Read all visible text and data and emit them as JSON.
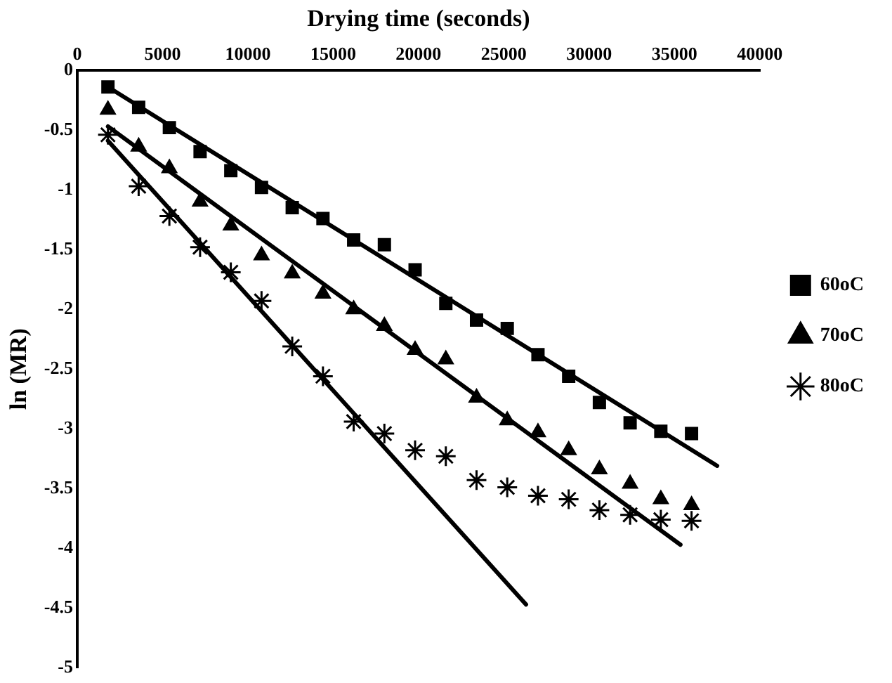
{
  "chart_data": {
    "type": "scatter",
    "xlabel": "Drying time (seconds)",
    "ylabel": "ln (MR)",
    "xlim": [
      0,
      40000
    ],
    "xticks": [
      0,
      5000,
      10000,
      15000,
      20000,
      25000,
      30000,
      35000,
      40000
    ],
    "ylim": [
      -5,
      0
    ],
    "yticks": [
      0,
      -0.5,
      -1,
      -1.5,
      -2,
      -2.5,
      -3,
      -3.5,
      -4,
      -4.5,
      -5
    ],
    "grid": false,
    "legend": "right",
    "x": [
      1800,
      3600,
      5400,
      7200,
      9000,
      10800,
      12600,
      14400,
      16200,
      18000,
      19800,
      21600,
      23400,
      25200,
      27000,
      28800,
      30600,
      32400,
      34200,
      36000
    ],
    "series": [
      {
        "name": "60oC",
        "color": "#000000",
        "marker": "square",
        "values": [
          -0.14,
          -0.31,
          -0.48,
          -0.68,
          -0.84,
          -0.98,
          -1.15,
          -1.24,
          -1.42,
          -1.46,
          -1.67,
          -1.95,
          -2.09,
          -2.16,
          -2.38,
          -2.56,
          -2.78,
          -2.95,
          -3.02,
          -3.04
        ]
      },
      {
        "name": "70oC",
        "color": "#000000",
        "marker": "triangle",
        "values": [
          -0.33,
          -0.64,
          -0.82,
          -1.1,
          -1.3,
          -1.55,
          -1.7,
          -1.87,
          -2.0,
          -2.14,
          -2.34,
          -2.42,
          -2.74,
          -2.93,
          -3.03,
          -3.18,
          -3.34,
          -3.46,
          -3.59,
          -3.64
        ]
      },
      {
        "name": "80oC",
        "color": "#000000",
        "marker": "cross",
        "values": [
          -0.54,
          -0.97,
          -1.22,
          -1.48,
          -1.69,
          -1.93,
          -2.31,
          -2.56,
          -2.94,
          -3.04,
          -3.18,
          -3.23,
          -3.43,
          -3.49,
          -3.56,
          -3.59,
          -3.68,
          -3.72,
          -3.76,
          -3.77
        ]
      },
      {
        "type": "line",
        "color": "#000000",
        "x": [
          1800,
          37500
        ],
        "values": [
          -0.14,
          -3.31
        ]
      },
      {
        "type": "line",
        "color": "#000000",
        "x": [
          1800,
          35350
        ],
        "values": [
          -0.47,
          -3.97
        ]
      },
      {
        "type": "line",
        "color": "#000000",
        "x": [
          1800,
          26300
        ],
        "values": [
          -0.59,
          -4.47
        ]
      }
    ]
  }
}
